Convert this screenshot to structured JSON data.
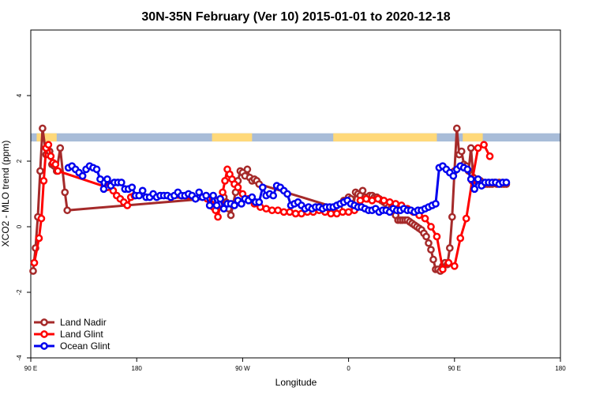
{
  "chart_data": {
    "type": "line",
    "title": "30N-35N February (Ver 10)   2015-01-01 to 2020-12-18",
    "xlabel": "Longitude",
    "ylabel": "XCO2 - MLO trend (ppm)",
    "xlim": [
      90,
      540
    ],
    "ylim": [
      -4,
      6
    ],
    "x_ticks": [
      {
        "value": 90,
        "label": "90 E"
      },
      {
        "value": 180,
        "label": "180"
      },
      {
        "value": 270,
        "label": "90 W"
      },
      {
        "value": 360,
        "label": "0"
      },
      {
        "value": 450,
        "label": "90 E"
      },
      {
        "value": 540,
        "label": "180"
      }
    ],
    "y_ticks": [
      {
        "value": -4,
        "label": "-4"
      },
      {
        "value": -2,
        "label": "-2"
      },
      {
        "value": 0,
        "label": "0"
      },
      {
        "value": 2,
        "label": "2"
      },
      {
        "value": 4,
        "label": "4"
      }
    ],
    "land_mask_band": {
      "y_range": [
        2.6,
        2.85
      ],
      "ocean_color": "#a8bcd8",
      "land_color": "#ffd97a"
    },
    "legend_position": "bottom-left",
    "series": [
      {
        "name": "Land Nadir",
        "color": "#a52a2a",
        "x": [
          92,
          94,
          96,
          98,
          100,
          103,
          106,
          108,
          110,
          112,
          115,
          119,
          121,
          254,
          256,
          258,
          260,
          262,
          264,
          266,
          268,
          270,
          272,
          274,
          276,
          278,
          280,
          282,
          284,
          352,
          356,
          360,
          362,
          364,
          366,
          368,
          370,
          372,
          374,
          376,
          378,
          380,
          382,
          384,
          386,
          388,
          390,
          392,
          394,
          396,
          398,
          400,
          402,
          404,
          406,
          408,
          410,
          412,
          414,
          416,
          418,
          420,
          422,
          424,
          426,
          428,
          430,
          432,
          434,
          436,
          438,
          440,
          442,
          444,
          446,
          448,
          450,
          452,
          454,
          456,
          458,
          460,
          462,
          464,
          466,
          468,
          470,
          472,
          474,
          476,
          478,
          480,
          482,
          484,
          486,
          488,
          490,
          492,
          494
        ],
        "y": [
          -1.35,
          -0.65,
          0.3,
          1.7,
          3.0,
          2.2,
          2.3,
          1.9,
          1.85,
          1.7,
          2.4,
          1.05,
          0.5,
          0.9,
          0.75,
          0.55,
          0.35,
          0.7,
          1.05,
          1.4,
          1.7,
          1.65,
          1.55,
          1.75,
          1.5,
          1.4,
          1.45,
          1.4,
          1.3,
          0.55,
          0.8,
          0.9,
          0.85,
          0.65,
          1.05,
          1.0,
          0.95,
          1.1,
          0.9,
          0.85,
          0.95,
          0.95,
          0.9,
          0.9,
          0.85,
          0.8,
          0.75,
          0.7,
          0.6,
          0.55,
          0.45,
          0.35,
          0.2,
          0.2,
          0.2,
          0.2,
          0.2,
          0.15,
          0.1,
          0.05,
          0.0,
          -0.05,
          -0.1,
          -0.2,
          -0.3,
          -0.5,
          -0.7,
          -1.0,
          -1.3,
          -1.3,
          -1.35,
          -1.2,
          -1.1,
          -1.15,
          -0.65,
          0.3,
          1.7,
          3.0,
          2.2,
          2.3,
          1.9,
          1.85,
          1.7,
          2.4,
          1.5,
          1.4,
          1.45,
          1.4,
          1.35,
          1.3,
          1.3,
          1.3,
          1.3,
          1.35,
          1.3,
          1.35,
          1.3,
          1.3,
          1.3
        ]
      },
      {
        "name": "Land Glint",
        "color": "#ff0000",
        "x": [
          93,
          97,
          99,
          101,
          103,
          105,
          107,
          109,
          111,
          113,
          155,
          157,
          160,
          163,
          166,
          169,
          172,
          175,
          178,
          240,
          243,
          245,
          247,
          249,
          251,
          253,
          255,
          257,
          259,
          261,
          263,
          266,
          270,
          275,
          280,
          285,
          290,
          295,
          300,
          305,
          310,
          315,
          320,
          325,
          330,
          335,
          340,
          345,
          350,
          355,
          360,
          365,
          370,
          375,
          380,
          385,
          390,
          395,
          400,
          405,
          410,
          415,
          420,
          425,
          430,
          435,
          440,
          445,
          450,
          455,
          460,
          465,
          470,
          475,
          480
        ],
        "y": [
          -1.1,
          -0.35,
          0.25,
          1.4,
          2.4,
          2.5,
          2.15,
          1.95,
          1.9,
          1.7,
          1.2,
          1.3,
          1.1,
          0.95,
          0.85,
          0.75,
          0.65,
          0.9,
          0.95,
          0.85,
          0.7,
          0.6,
          0.5,
          0.3,
          0.7,
          1.05,
          1.4,
          1.75,
          1.6,
          1.45,
          1.3,
          1.2,
          1.0,
          0.85,
          0.7,
          0.6,
          0.55,
          0.5,
          0.5,
          0.45,
          0.45,
          0.4,
          0.4,
          0.45,
          0.45,
          0.5,
          0.45,
          0.4,
          0.4,
          0.45,
          0.45,
          0.5,
          0.8,
          0.85,
          0.8,
          0.85,
          0.8,
          0.75,
          0.7,
          0.65,
          0.55,
          0.45,
          0.35,
          0.25,
          0.0,
          -0.3,
          -1.3,
          -1.1,
          -1.2,
          -0.35,
          0.25,
          1.4,
          2.4,
          2.5,
          2.15
        ]
      },
      {
        "name": "Ocean Glint",
        "color": "#0000ee",
        "x": [
          122,
          125,
          128,
          131,
          134,
          137,
          140,
          143,
          146,
          149,
          152,
          155,
          158,
          161,
          164,
          167,
          170,
          173,
          176,
          179,
          182,
          185,
          188,
          191,
          194,
          197,
          200,
          203,
          206,
          209,
          212,
          215,
          218,
          221,
          224,
          227,
          230,
          233,
          236,
          239,
          242,
          245,
          248,
          251,
          254,
          257,
          260,
          263,
          266,
          269,
          272,
          275,
          278,
          281,
          284,
          287,
          290,
          293,
          296,
          299,
          302,
          305,
          308,
          311,
          314,
          317,
          320,
          323,
          326,
          329,
          332,
          335,
          338,
          341,
          344,
          347,
          350,
          353,
          356,
          359,
          362,
          365,
          368,
          371,
          374,
          377,
          380,
          383,
          386,
          389,
          392,
          395,
          398,
          401,
          404,
          407,
          410,
          413,
          416,
          419,
          422,
          425,
          428,
          431,
          434,
          437,
          440,
          443,
          446,
          449,
          452,
          455,
          458,
          461,
          464,
          467,
          470,
          473,
          476,
          479,
          482,
          485,
          488,
          491,
          494
        ],
        "y": [
          1.8,
          1.85,
          1.75,
          1.65,
          1.55,
          1.75,
          1.85,
          1.8,
          1.75,
          1.45,
          1.15,
          1.45,
          1.25,
          1.35,
          1.35,
          1.35,
          1.15,
          1.15,
          1.2,
          0.95,
          0.95,
          1.1,
          0.9,
          0.9,
          1.0,
          0.9,
          0.95,
          0.95,
          0.95,
          0.9,
          0.95,
          1.05,
          0.95,
          0.95,
          1.0,
          0.95,
          0.85,
          1.05,
          0.9,
          0.95,
          0.65,
          0.95,
          0.65,
          0.85,
          0.55,
          0.7,
          0.7,
          0.65,
          0.8,
          0.7,
          0.85,
          0.8,
          0.9,
          0.75,
          0.75,
          1.2,
          0.95,
          1.0,
          0.95,
          1.25,
          1.2,
          1.1,
          1.0,
          0.65,
          0.7,
          0.75,
          0.65,
          0.55,
          0.6,
          0.55,
          0.6,
          0.6,
          0.55,
          0.6,
          0.6,
          0.6,
          0.65,
          0.7,
          0.75,
          0.8,
          0.7,
          0.65,
          0.6,
          0.6,
          0.55,
          0.5,
          0.5,
          0.55,
          0.45,
          0.5,
          0.5,
          0.45,
          0.55,
          0.5,
          0.5,
          0.55,
          0.5,
          0.5,
          0.45,
          0.5,
          0.5,
          0.55,
          0.6,
          0.65,
          0.7,
          1.8,
          1.85,
          1.75,
          1.65,
          1.55,
          1.75,
          1.85,
          1.8,
          1.75,
          1.45,
          1.15,
          1.45,
          1.25,
          1.35,
          1.35,
          1.35,
          1.35,
          1.3,
          1.35,
          1.35
        ]
      }
    ]
  }
}
